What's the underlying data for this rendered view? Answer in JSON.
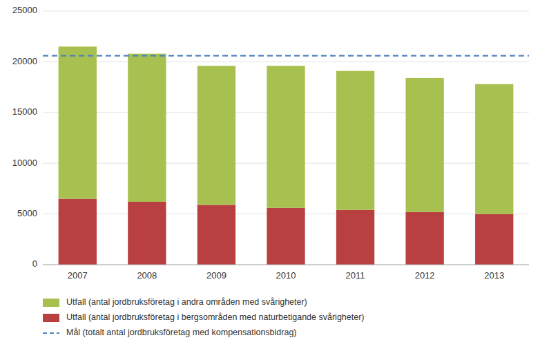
{
  "chart_data": {
    "type": "bar",
    "stacked": true,
    "categories": [
      "2007",
      "2008",
      "2009",
      "2010",
      "2011",
      "2012",
      "2013"
    ],
    "series": [
      {
        "name": "Utfall (antal jordbruksföretag i bergsområden med naturbetigande svårigheter)",
        "color": "#b94040",
        "values": [
          6500,
          6200,
          5900,
          5600,
          5400,
          5200,
          5000
        ]
      },
      {
        "name": "Utfall (antal jordbruksföretag i andra områden med svårigheter)",
        "color": "#a8c050",
        "values": [
          15000,
          14600,
          13700,
          14000,
          13700,
          13200,
          12800
        ]
      }
    ],
    "reference_lines": [
      {
        "name": "Mål (totalt antal jordbruksföretag med kompensationsbidrag)",
        "value": 20600,
        "color": "#4f81bd",
        "line_style": "dashed"
      }
    ],
    "ylim": [
      0,
      25000
    ],
    "yticks": [
      0,
      5000,
      10000,
      15000,
      20000,
      25000
    ],
    "grid": true,
    "legend": "bottom"
  }
}
